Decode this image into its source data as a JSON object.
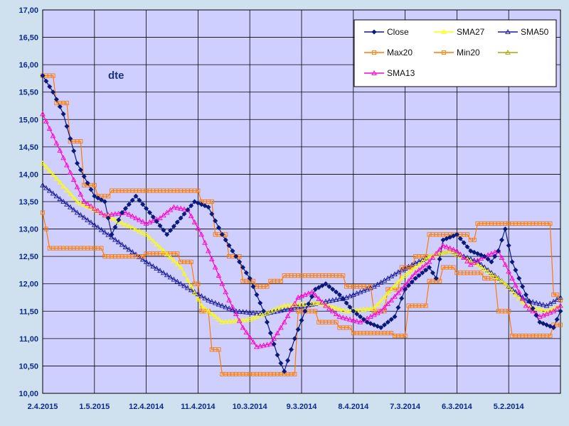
{
  "chart_data": {
    "type": "line",
    "title": "dte",
    "grid": true,
    "legend_position": "top-right",
    "ylim": [
      10.0,
      17.0
    ],
    "y_ticks": [
      "10,00",
      "10,50",
      "11,00",
      "11,50",
      "12,00",
      "12,50",
      "13,00",
      "13,50",
      "14,00",
      "14,50",
      "15,00",
      "15,50",
      "16,00",
      "16,50",
      "17,00"
    ],
    "x_ticks": [
      "2.4.2015",
      "1.5.2015",
      "12.4.2014",
      "11.4.2014",
      "10.3.2014",
      "9.3.2014",
      "8.4.2014",
      "7.3.2014",
      "6.3.2014",
      "5.2.2014"
    ],
    "x_count": 140,
    "legend": [
      "Close",
      "SMA27",
      "SMA50",
      "Max20",
      "Min20",
      "",
      "SMA13"
    ],
    "colors": {
      "Close": "#0a1a7a",
      "SMA27": "#ffff00",
      "SMA50": "#1a1a9a",
      "Max20": "#ff7a00",
      "Min20": "#ff7a00",
      "blank": "#a8a800",
      "SMA13": "#ff00cc",
      "grid": "#000000",
      "plot_bg": "#cfcfff"
    },
    "series": [
      {
        "name": "Close",
        "marker": "diamond",
        "keypoints": [
          [
            0,
            15.8
          ],
          [
            3,
            15.5
          ],
          [
            6,
            15.1
          ],
          [
            10,
            14.2
          ],
          [
            15,
            13.6
          ],
          [
            18,
            13.5
          ],
          [
            20,
            12.9
          ],
          [
            23,
            13.3
          ],
          [
            27,
            13.6
          ],
          [
            31,
            13.3
          ],
          [
            36,
            12.9
          ],
          [
            40,
            13.2
          ],
          [
            44,
            13.5
          ],
          [
            48,
            13.4
          ],
          [
            52,
            12.9
          ],
          [
            56,
            12.5
          ],
          [
            60,
            12.1
          ],
          [
            64,
            11.5
          ],
          [
            66,
            11.1
          ],
          [
            68,
            10.7
          ],
          [
            70,
            10.4
          ],
          [
            73,
            11.0
          ],
          [
            76,
            11.5
          ],
          [
            79,
            11.9
          ],
          [
            82,
            12.0
          ],
          [
            86,
            11.8
          ],
          [
            90,
            11.5
          ],
          [
            94,
            11.3
          ],
          [
            98,
            11.2
          ],
          [
            102,
            11.4
          ],
          [
            105,
            11.9
          ],
          [
            108,
            12.1
          ],
          [
            112,
            12.3
          ],
          [
            114,
            12.1
          ],
          [
            116,
            12.8
          ],
          [
            120,
            12.9
          ],
          [
            124,
            12.6
          ],
          [
            128,
            12.5
          ],
          [
            130,
            12.4
          ],
          [
            132,
            12.6
          ],
          [
            134,
            13.0
          ],
          [
            136,
            12.4
          ],
          [
            140,
            11.8
          ],
          [
            144,
            11.3
          ],
          [
            148,
            11.2
          ],
          [
            150,
            11.5
          ]
        ]
      },
      {
        "name": "SMA27",
        "marker": "triangle",
        "keypoints": [
          [
            0,
            14.2
          ],
          [
            10,
            13.5
          ],
          [
            20,
            13.2
          ],
          [
            30,
            12.9
          ],
          [
            40,
            12.3
          ],
          [
            46,
            11.6
          ],
          [
            52,
            11.3
          ],
          [
            60,
            11.35
          ],
          [
            70,
            11.6
          ],
          [
            80,
            11.65
          ],
          [
            88,
            11.5
          ],
          [
            96,
            11.55
          ],
          [
            104,
            12.1
          ],
          [
            112,
            12.5
          ],
          [
            118,
            12.6
          ],
          [
            126,
            12.35
          ],
          [
            134,
            12.0
          ],
          [
            140,
            11.6
          ],
          [
            146,
            11.5
          ],
          [
            150,
            11.6
          ]
        ]
      },
      {
        "name": "SMA50",
        "marker": "triangle",
        "keypoints": [
          [
            0,
            13.8
          ],
          [
            10,
            13.3
          ],
          [
            20,
            12.85
          ],
          [
            30,
            12.4
          ],
          [
            40,
            12.0
          ],
          [
            48,
            11.7
          ],
          [
            56,
            11.5
          ],
          [
            64,
            11.45
          ],
          [
            72,
            11.55
          ],
          [
            80,
            11.65
          ],
          [
            88,
            11.75
          ],
          [
            96,
            11.95
          ],
          [
            104,
            12.25
          ],
          [
            112,
            12.5
          ],
          [
            118,
            12.6
          ],
          [
            126,
            12.4
          ],
          [
            134,
            12.0
          ],
          [
            140,
            11.7
          ],
          [
            146,
            11.6
          ],
          [
            150,
            11.75
          ]
        ]
      },
      {
        "name": "Max20",
        "marker": "square",
        "step": true,
        "keypoints": [
          [
            0,
            15.8
          ],
          [
            4,
            15.3
          ],
          [
            8,
            14.6
          ],
          [
            12,
            13.8
          ],
          [
            16,
            13.6
          ],
          [
            20,
            13.7
          ],
          [
            44,
            13.7
          ],
          [
            46,
            13.5
          ],
          [
            50,
            12.9
          ],
          [
            54,
            12.5
          ],
          [
            58,
            12.05
          ],
          [
            62,
            11.95
          ],
          [
            66,
            12.05
          ],
          [
            70,
            12.15
          ],
          [
            88,
            11.95
          ],
          [
            96,
            11.5
          ],
          [
            100,
            11.9
          ],
          [
            104,
            12.3
          ],
          [
            108,
            12.5
          ],
          [
            112,
            12.9
          ],
          [
            124,
            12.8
          ],
          [
            126,
            13.1
          ],
          [
            148,
            11.8
          ],
          [
            150,
            11.7
          ]
        ]
      },
      {
        "name": "Min20",
        "marker": "square",
        "step": true,
        "keypoints": [
          [
            0,
            13.3
          ],
          [
            1,
            13.0
          ],
          [
            2,
            12.65
          ],
          [
            18,
            12.5
          ],
          [
            26,
            12.5
          ],
          [
            30,
            12.55
          ],
          [
            40,
            12.4
          ],
          [
            44,
            12.0
          ],
          [
            46,
            11.5
          ],
          [
            49,
            10.8
          ],
          [
            52,
            10.35
          ],
          [
            70,
            10.35
          ],
          [
            74,
            11.5
          ],
          [
            80,
            11.3
          ],
          [
            86,
            11.2
          ],
          [
            90,
            11.1
          ],
          [
            102,
            11.05
          ],
          [
            106,
            11.6
          ],
          [
            112,
            12.05
          ],
          [
            116,
            12.3
          ],
          [
            120,
            12.2
          ],
          [
            128,
            12.1
          ],
          [
            132,
            11.5
          ],
          [
            136,
            11.05
          ],
          [
            146,
            11.05
          ],
          [
            148,
            11.25
          ],
          [
            150,
            11.25
          ]
        ]
      },
      {
        "name": "SMA13",
        "marker": "triangle",
        "keypoints": [
          [
            0,
            15.1
          ],
          [
            6,
            14.3
          ],
          [
            12,
            13.5
          ],
          [
            18,
            13.25
          ],
          [
            24,
            13.3
          ],
          [
            30,
            13.1
          ],
          [
            34,
            13.2
          ],
          [
            38,
            13.4
          ],
          [
            42,
            13.35
          ],
          [
            46,
            12.9
          ],
          [
            50,
            12.3
          ],
          [
            54,
            11.7
          ],
          [
            58,
            11.2
          ],
          [
            62,
            10.85
          ],
          [
            66,
            10.9
          ],
          [
            70,
            11.3
          ],
          [
            74,
            11.75
          ],
          [
            78,
            11.85
          ],
          [
            82,
            11.6
          ],
          [
            86,
            11.4
          ],
          [
            92,
            11.3
          ],
          [
            98,
            11.5
          ],
          [
            104,
            11.9
          ],
          [
            108,
            12.2
          ],
          [
            112,
            12.4
          ],
          [
            116,
            12.7
          ],
          [
            120,
            12.6
          ],
          [
            124,
            12.35
          ],
          [
            128,
            12.5
          ],
          [
            132,
            12.6
          ],
          [
            136,
            12.1
          ],
          [
            140,
            11.6
          ],
          [
            144,
            11.4
          ],
          [
            148,
            11.5
          ],
          [
            150,
            11.6
          ]
        ]
      }
    ]
  }
}
